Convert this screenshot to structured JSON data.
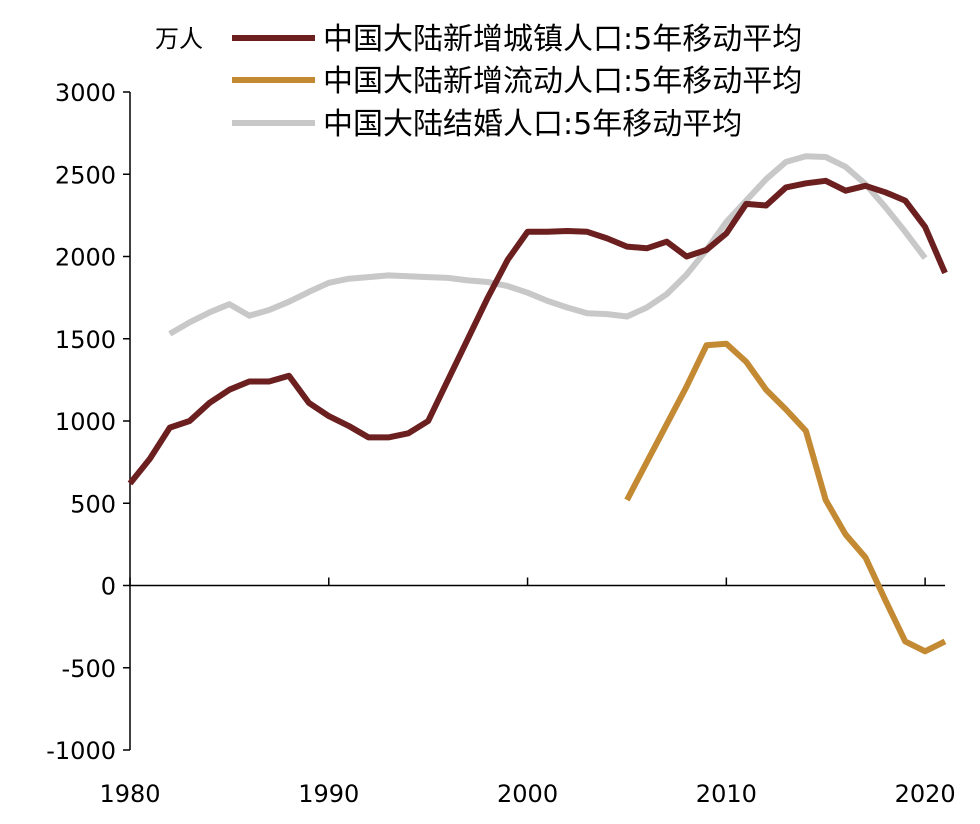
{
  "chart_data": {
    "type": "line",
    "unit_label": "万人",
    "xlim": [
      1980,
      2021
    ],
    "ylim": [
      -1000,
      3000
    ],
    "x_ticks": [
      1980,
      1990,
      2000,
      2010,
      2020
    ],
    "y_ticks": [
      3000,
      2500,
      2000,
      1500,
      1000,
      500,
      0,
      -500,
      -1000
    ],
    "y_tick_labels": [
      "3000",
      "2500",
      "2000",
      "1500",
      "1000",
      "500",
      "0",
      "-500",
      "-1000"
    ],
    "grid": false,
    "legend_position": "top",
    "series": [
      {
        "name": "中国大陆新增城镇人口:5年移动平均",
        "color": "#6b1f1f",
        "points": [
          [
            1980,
            620
          ],
          [
            1981,
            770
          ],
          [
            1982,
            960
          ],
          [
            1983,
            1000
          ],
          [
            1984,
            1110
          ],
          [
            1985,
            1190
          ],
          [
            1986,
            1240
          ],
          [
            1987,
            1240
          ],
          [
            1988,
            1275
          ],
          [
            1989,
            1110
          ],
          [
            1990,
            1030
          ],
          [
            1991,
            970
          ],
          [
            1992,
            900
          ],
          [
            1993,
            900
          ],
          [
            1994,
            925
          ],
          [
            1995,
            1000
          ],
          [
            1996,
            1250
          ],
          [
            1997,
            1500
          ],
          [
            1998,
            1750
          ],
          [
            1999,
            1980
          ],
          [
            2000,
            2150
          ],
          [
            2001,
            2150
          ],
          [
            2002,
            2155
          ],
          [
            2003,
            2150
          ],
          [
            2004,
            2110
          ],
          [
            2005,
            2060
          ],
          [
            2006,
            2050
          ],
          [
            2007,
            2090
          ],
          [
            2008,
            2000
          ],
          [
            2009,
            2040
          ],
          [
            2010,
            2140
          ],
          [
            2011,
            2320
          ],
          [
            2012,
            2310
          ],
          [
            2013,
            2420
          ],
          [
            2014,
            2445
          ],
          [
            2015,
            2460
          ],
          [
            2016,
            2400
          ],
          [
            2017,
            2430
          ],
          [
            2018,
            2390
          ],
          [
            2019,
            2340
          ],
          [
            2020,
            2180
          ],
          [
            2021,
            1900
          ]
        ]
      },
      {
        "name": "中国大陆新增流动人口:5年移动平均",
        "color": "#c38a33",
        "points": [
          [
            2005,
            520
          ],
          [
            2006,
            750
          ],
          [
            2007,
            980
          ],
          [
            2008,
            1210
          ],
          [
            2009,
            1460
          ],
          [
            2010,
            1470
          ],
          [
            2011,
            1360
          ],
          [
            2012,
            1190
          ],
          [
            2013,
            1070
          ],
          [
            2014,
            940
          ],
          [
            2015,
            520
          ],
          [
            2016,
            310
          ],
          [
            2017,
            170
          ],
          [
            2018,
            -90
          ],
          [
            2019,
            -340
          ],
          [
            2020,
            -400
          ],
          [
            2021,
            -340
          ]
        ]
      },
      {
        "name": "中国大陆结婚人口:5年移动平均",
        "color": "#c8c8c8",
        "points": [
          [
            1982,
            1530
          ],
          [
            1983,
            1600
          ],
          [
            1984,
            1660
          ],
          [
            1985,
            1710
          ],
          [
            1986,
            1640
          ],
          [
            1987,
            1675
          ],
          [
            1988,
            1725
          ],
          [
            1989,
            1785
          ],
          [
            1990,
            1840
          ],
          [
            1991,
            1865
          ],
          [
            1992,
            1875
          ],
          [
            1993,
            1885
          ],
          [
            1994,
            1880
          ],
          [
            1995,
            1875
          ],
          [
            1996,
            1870
          ],
          [
            1997,
            1855
          ],
          [
            1998,
            1845
          ],
          [
            1999,
            1820
          ],
          [
            2000,
            1780
          ],
          [
            2001,
            1730
          ],
          [
            2002,
            1690
          ],
          [
            2003,
            1655
          ],
          [
            2004,
            1650
          ],
          [
            2005,
            1635
          ],
          [
            2006,
            1690
          ],
          [
            2007,
            1770
          ],
          [
            2008,
            1890
          ],
          [
            2009,
            2040
          ],
          [
            2010,
            2210
          ],
          [
            2011,
            2340
          ],
          [
            2012,
            2470
          ],
          [
            2013,
            2575
          ],
          [
            2014,
            2610
          ],
          [
            2015,
            2605
          ],
          [
            2016,
            2545
          ],
          [
            2017,
            2440
          ],
          [
            2018,
            2300
          ],
          [
            2019,
            2150
          ],
          [
            2020,
            1990
          ]
        ]
      }
    ]
  }
}
